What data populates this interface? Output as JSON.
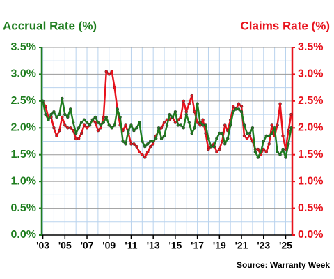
{
  "chart_data": {
    "type": "line",
    "title_left": "Accrual Rate (%)",
    "title_right": "Claims Rate (%)",
    "source": "Source: Warranty Week",
    "x": [
      2003,
      2003.25,
      2003.5,
      2003.75,
      2004,
      2004.25,
      2004.5,
      2004.75,
      2005,
      2005.25,
      2005.5,
      2005.75,
      2006,
      2006.25,
      2006.5,
      2006.75,
      2007,
      2007.25,
      2007.5,
      2007.75,
      2008,
      2008.25,
      2008.5,
      2008.75,
      2009,
      2009.25,
      2009.5,
      2009.75,
      2010,
      2010.25,
      2010.5,
      2010.75,
      2011,
      2011.25,
      2011.5,
      2011.75,
      2012,
      2012.25,
      2012.5,
      2012.75,
      2013,
      2013.25,
      2013.5,
      2013.75,
      2014,
      2014.25,
      2014.5,
      2014.75,
      2015,
      2015.25,
      2015.5,
      2015.75,
      2016,
      2016.25,
      2016.5,
      2016.75,
      2017,
      2017.25,
      2017.5,
      2017.75,
      2018,
      2018.25,
      2018.5,
      2018.75,
      2019,
      2019.25,
      2019.5,
      2019.75,
      2020,
      2020.25,
      2020.5,
      2020.75,
      2021,
      2021.25,
      2021.5,
      2021.75,
      2022,
      2022.25,
      2022.5,
      2022.75,
      2023,
      2023.25,
      2023.5,
      2023.75,
      2024,
      2024.25,
      2024.5,
      2024.75,
      2025,
      2025.25,
      2025.5
    ],
    "series": [
      {
        "name": "Accrual Rate",
        "color": "#1e7d1e",
        "axis": "y",
        "values": [
          2.5,
          2.25,
          2.15,
          2.25,
          2.3,
          2.2,
          2.25,
          2.55,
          2.25,
          2.2,
          2.35,
          2.1,
          1.9,
          2.0,
          2.1,
          2.15,
          2.1,
          2.05,
          2.15,
          2.2,
          2.1,
          2.05,
          2.1,
          2.2,
          2.05,
          2.0,
          2.05,
          2.35,
          2.2,
          1.75,
          1.7,
          1.95,
          2.05,
          1.95,
          2.0,
          2.1,
          1.75,
          1.65,
          1.7,
          1.75,
          1.75,
          1.8,
          2.0,
          1.8,
          1.85,
          2.05,
          2.25,
          2.2,
          2.3,
          2.05,
          2.05,
          2.0,
          2.25,
          2.1,
          1.9,
          2.0,
          2.45,
          2.1,
          2.05,
          2.05,
          1.8,
          1.65,
          1.65,
          1.8,
          1.9,
          1.9,
          1.7,
          1.8,
          2.05,
          2.3,
          2.35,
          2.35,
          2.3,
          2.05,
          1.9,
          1.9,
          2.0,
          1.55,
          1.45,
          1.55,
          1.75,
          1.85,
          1.85,
          1.9,
          2.0,
          1.55,
          1.5,
          1.6,
          1.45,
          1.7,
          2.0
        ]
      },
      {
        "name": "Claims Rate",
        "color": "#e8121c",
        "axis": "y2",
        "values": [
          2.5,
          2.4,
          2.2,
          2.2,
          2.0,
          1.85,
          1.95,
          2.2,
          2.05,
          2.0,
          2.0,
          1.95,
          1.8,
          1.8,
          1.9,
          2.05,
          2.0,
          2.05,
          2.15,
          2.1,
          1.95,
          2.0,
          2.2,
          3.05,
          3.0,
          3.05,
          2.75,
          2.35,
          2.05,
          1.95,
          2.05,
          1.9,
          1.7,
          1.7,
          1.65,
          1.55,
          1.5,
          1.45,
          1.55,
          1.65,
          1.7,
          1.85,
          1.95,
          2.0,
          2.1,
          2.15,
          2.15,
          2.2,
          2.1,
          2.15,
          2.2,
          2.5,
          2.3,
          2.45,
          2.6,
          2.3,
          2.1,
          2.05,
          2.15,
          1.9,
          1.6,
          1.65,
          1.7,
          1.55,
          1.6,
          1.75,
          2.05,
          1.95,
          2.15,
          2.4,
          2.35,
          2.45,
          2.4,
          1.85,
          1.8,
          1.85,
          1.75,
          1.6,
          1.6,
          1.5,
          1.6,
          1.55,
          1.7,
          2.05,
          1.85,
          2.05,
          2.45,
          1.85,
          1.6,
          1.95,
          2.25
        ]
      }
    ],
    "xlim": [
      2002.9,
      2025.6
    ],
    "xticks": [
      {
        "value": 2003,
        "label": "'03"
      },
      {
        "value": 2005,
        "label": "'05"
      },
      {
        "value": 2007,
        "label": "'07"
      },
      {
        "value": 2009,
        "label": "'09"
      },
      {
        "value": 2011,
        "label": "'11"
      },
      {
        "value": 2013,
        "label": "'13"
      },
      {
        "value": 2015,
        "label": "'15"
      },
      {
        "value": 2017,
        "label": "'17"
      },
      {
        "value": 2019,
        "label": "'19"
      },
      {
        "value": 2021,
        "label": "'21"
      },
      {
        "value": 2023,
        "label": "'23"
      },
      {
        "value": 2025,
        "label": "'25"
      }
    ],
    "x_minor_ticks": [
      2004,
      2006,
      2008,
      2010,
      2012,
      2014,
      2016,
      2018,
      2020,
      2022,
      2024
    ],
    "ylim": [
      0,
      3.5
    ],
    "yticks": [
      {
        "value": 0,
        "label": "0.0%"
      },
      {
        "value": 0.5,
        "label": "0.5%"
      },
      {
        "value": 1,
        "label": "1.0%"
      },
      {
        "value": 1.5,
        "label": "1.5%"
      },
      {
        "value": 2,
        "label": "2.0%"
      },
      {
        "value": 2.5,
        "label": "2.5%"
      },
      {
        "value": 3,
        "label": "3.0%"
      },
      {
        "value": 3.5,
        "label": "3.5%"
      }
    ],
    "y_minor_ticks": [
      0.25,
      0.75,
      1.25,
      1.75,
      2.25,
      2.75,
      3.25
    ],
    "y2lim": [
      0,
      3.5
    ],
    "y2ticks": [
      {
        "value": 0,
        "label": "0.0%"
      },
      {
        "value": 0.5,
        "label": "0.5%"
      },
      {
        "value": 1,
        "label": "1.0%"
      },
      {
        "value": 1.5,
        "label": "1.5%"
      },
      {
        "value": 2,
        "label": "2.0%"
      },
      {
        "value": 2.5,
        "label": "2.5%"
      },
      {
        "value": 3,
        "label": "3.0%"
      },
      {
        "value": 3.5,
        "label": "3.5%"
      }
    ],
    "grid": true
  }
}
